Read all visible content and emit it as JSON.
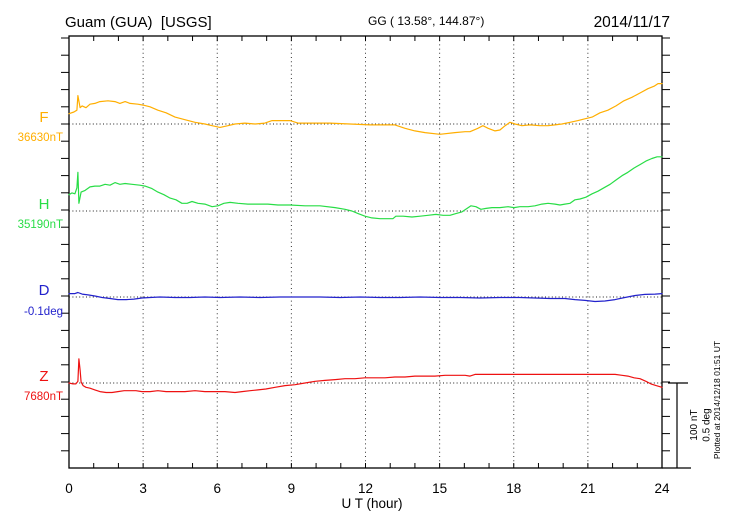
{
  "header": {
    "station_title": "Guam (GUA)  [USGS]",
    "coords": "GG ( 13.58°, 144.87°)",
    "date": "2014/11/17"
  },
  "x_axis": {
    "label": "U T (hour)",
    "tick_labels": [
      "0",
      "3",
      "6",
      "9",
      "12",
      "15",
      "18",
      "21",
      "24"
    ],
    "tick_hours": [
      0,
      3,
      6,
      9,
      12,
      15,
      18,
      21,
      24
    ],
    "minor_tick_every_hours": 1,
    "grid_every_hours": 3
  },
  "scale_bar": {
    "line1": "100 nT",
    "line2": "0.5 deg"
  },
  "footer_note": "Plotted at 2014/12/18 01:51 UT",
  "channels": [
    {
      "id": "F",
      "label": "F",
      "baseline_label": "36630nT",
      "baseline_value": 36630,
      "unit": "nT",
      "color": "#FFAE00"
    },
    {
      "id": "H",
      "label": "H",
      "baseline_label": "35190nT",
      "baseline_value": 35190,
      "unit": "nT",
      "color": "#28DD46"
    },
    {
      "id": "D",
      "label": "D",
      "baseline_label": "-0.1deg",
      "baseline_value": -0.1,
      "unit": "deg",
      "color": "#2222CC"
    },
    {
      "id": "Z",
      "label": "Z",
      "baseline_label": "7680nT",
      "baseline_value": 7680,
      "unit": "nT",
      "color": "#EE1111"
    }
  ],
  "chart_data": {
    "type": "line",
    "title": "Guam (GUA) [USGS] magnetogram",
    "date": "2014/11/17",
    "xlabel": "U T (hour)",
    "x_range_hours": [
      0,
      24
    ],
    "grid": "dotted baselines per channel + vertical dotted lines every 3 h",
    "legend_position": "left margin channel labels",
    "scale": {
      "nT_per_division": 100,
      "deg_per_division": 0.5
    },
    "series": [
      {
        "name": "F",
        "unit": "nT",
        "baseline": 36630,
        "note": "points are [hour UT, offset from baseline in nT]",
        "points": [
          [
            0,
            12
          ],
          [
            0.2,
            14
          ],
          [
            0.32,
            16
          ],
          [
            0.36,
            33
          ],
          [
            0.45,
            19
          ],
          [
            0.53,
            21
          ],
          [
            0.69,
            19
          ],
          [
            0.85,
            23
          ],
          [
            1.05,
            24
          ],
          [
            1.25,
            26
          ],
          [
            1.58,
            27
          ],
          [
            1.86,
            26
          ],
          [
            2.06,
            24
          ],
          [
            2.27,
            26
          ],
          [
            2.47,
            24
          ],
          [
            2.79,
            23
          ],
          [
            3,
            22
          ],
          [
            3.28,
            20
          ],
          [
            3.6,
            16
          ],
          [
            3.93,
            13
          ],
          [
            4.29,
            8
          ],
          [
            4.69,
            5
          ],
          [
            5.1,
            2
          ],
          [
            5.5,
            0
          ],
          [
            5.79,
            -2
          ],
          [
            6.11,
            -4
          ],
          [
            6.43,
            -2
          ],
          [
            6.72,
            0
          ],
          [
            7.12,
            1
          ],
          [
            7.53,
            0
          ],
          [
            7.93,
            1
          ],
          [
            8.22,
            4
          ],
          [
            8.54,
            4
          ],
          [
            8.94,
            4
          ],
          [
            9.27,
            1
          ],
          [
            9.75,
            1
          ],
          [
            10.56,
            1
          ],
          [
            11.37,
            0
          ],
          [
            12.18,
            -1
          ],
          [
            13.19,
            -1
          ],
          [
            13.6,
            -5
          ],
          [
            14,
            -8
          ],
          [
            14.41,
            -10
          ],
          [
            15.01,
            -12
          ],
          [
            15.62,
            -10
          ],
          [
            16.03,
            -9
          ],
          [
            16.23,
            -9
          ],
          [
            16.55,
            -5
          ],
          [
            16.75,
            -2
          ],
          [
            16.96,
            -5
          ],
          [
            17.24,
            -8
          ],
          [
            17.44,
            -7
          ],
          [
            17.65,
            -2
          ],
          [
            17.85,
            2
          ],
          [
            18.05,
            0
          ],
          [
            18.33,
            -2
          ],
          [
            18.66,
            -1
          ],
          [
            19.06,
            -2
          ],
          [
            19.39,
            -2
          ],
          [
            19.67,
            -1
          ],
          [
            19.95,
            0
          ],
          [
            20.28,
            2
          ],
          [
            20.6,
            4
          ],
          [
            20.88,
            6
          ],
          [
            21.17,
            8
          ],
          [
            21.49,
            13
          ],
          [
            21.81,
            16
          ],
          [
            22.14,
            21
          ],
          [
            22.46,
            27
          ],
          [
            22.78,
            31
          ],
          [
            23.11,
            36
          ],
          [
            23.43,
            41
          ],
          [
            23.68,
            44
          ],
          [
            23.84,
            47
          ],
          [
            24,
            47
          ]
        ]
      },
      {
        "name": "H",
        "unit": "nT",
        "baseline": 35190,
        "note": "points are [hour UT, offset from baseline in nT]",
        "points": [
          [
            0,
            19
          ],
          [
            0.12,
            21
          ],
          [
            0.24,
            20
          ],
          [
            0.32,
            27
          ],
          [
            0.36,
            45
          ],
          [
            0.4,
            9
          ],
          [
            0.49,
            22
          ],
          [
            0.65,
            24
          ],
          [
            0.85,
            28
          ],
          [
            1.05,
            29
          ],
          [
            1.25,
            29
          ],
          [
            1.46,
            31
          ],
          [
            1.66,
            30
          ],
          [
            1.86,
            33
          ],
          [
            2.06,
            31
          ],
          [
            2.27,
            32
          ],
          [
            2.55,
            31
          ],
          [
            2.87,
            30
          ],
          [
            3.08,
            29
          ],
          [
            3.36,
            26
          ],
          [
            3.6,
            22
          ],
          [
            3.84,
            19
          ],
          [
            4.09,
            15
          ],
          [
            4.33,
            13
          ],
          [
            4.57,
            9
          ],
          [
            4.78,
            9
          ],
          [
            4.98,
            11
          ],
          [
            5.22,
            9
          ],
          [
            5.5,
            8
          ],
          [
            5.79,
            5
          ],
          [
            6.03,
            6
          ],
          [
            6.27,
            9
          ],
          [
            6.52,
            10
          ],
          [
            6.84,
            9
          ],
          [
            7.24,
            8
          ],
          [
            7.65,
            8
          ],
          [
            8.05,
            8
          ],
          [
            8.46,
            7
          ],
          [
            8.94,
            7
          ],
          [
            9.55,
            6
          ],
          [
            10.16,
            6
          ],
          [
            10.77,
            4
          ],
          [
            11.17,
            2
          ],
          [
            11.45,
            0
          ],
          [
            11.7,
            -3
          ],
          [
            11.98,
            -6
          ],
          [
            12.26,
            -8
          ],
          [
            12.59,
            -9
          ],
          [
            12.91,
            -9
          ],
          [
            13.11,
            -9
          ],
          [
            13.23,
            -6
          ],
          [
            13.52,
            -6
          ],
          [
            13.88,
            -7
          ],
          [
            14.21,
            -6
          ],
          [
            14.53,
            -5
          ],
          [
            14.85,
            -4
          ],
          [
            15.14,
            -5
          ],
          [
            15.42,
            -5
          ],
          [
            15.66,
            -3
          ],
          [
            15.9,
            -1
          ],
          [
            16.11,
            3
          ],
          [
            16.27,
            6
          ],
          [
            16.47,
            5
          ],
          [
            16.67,
            2
          ],
          [
            16.88,
            3
          ],
          [
            17.12,
            4
          ],
          [
            17.44,
            4
          ],
          [
            17.77,
            5
          ],
          [
            18.01,
            4
          ],
          [
            18.25,
            5
          ],
          [
            18.58,
            5
          ],
          [
            18.86,
            6
          ],
          [
            19.14,
            8
          ],
          [
            19.39,
            9
          ],
          [
            19.67,
            8
          ],
          [
            19.87,
            7
          ],
          [
            20.07,
            8
          ],
          [
            20.28,
            9
          ],
          [
            20.48,
            13
          ],
          [
            20.68,
            14
          ],
          [
            20.92,
            16
          ],
          [
            21.17,
            20
          ],
          [
            21.41,
            23
          ],
          [
            21.65,
            27
          ],
          [
            21.9,
            31
          ],
          [
            22.14,
            36
          ],
          [
            22.38,
            41
          ],
          [
            22.62,
            45
          ],
          [
            22.87,
            50
          ],
          [
            23.11,
            54
          ],
          [
            23.35,
            58
          ],
          [
            23.59,
            61
          ],
          [
            23.8,
            63
          ],
          [
            24,
            63
          ]
        ]
      },
      {
        "name": "D",
        "unit": "deg",
        "baseline": -0.1,
        "note": "points are [hour UT, offset from baseline in deg]",
        "points": [
          [
            0,
            0.02
          ],
          [
            0.24,
            0.02
          ],
          [
            0.36,
            0.026
          ],
          [
            0.53,
            0.017
          ],
          [
            0.77,
            0.012
          ],
          [
            1.05,
            0.006
          ],
          [
            1.34,
            -0.003
          ],
          [
            1.66,
            -0.009
          ],
          [
            1.98,
            -0.015
          ],
          [
            2.31,
            -0.015
          ],
          [
            2.63,
            -0.012
          ],
          [
            2.95,
            -0.006
          ],
          [
            3.28,
            -0.003
          ],
          [
            3.68,
            0
          ],
          [
            4.29,
            -0.003
          ],
          [
            4.9,
            -0.003
          ],
          [
            5.5,
            0
          ],
          [
            6.11,
            -0.003
          ],
          [
            6.92,
            0
          ],
          [
            7.73,
            -0.003
          ],
          [
            8.54,
            0
          ],
          [
            9.35,
            0
          ],
          [
            10.16,
            0
          ],
          [
            10.97,
            -0.003
          ],
          [
            11.78,
            0
          ],
          [
            12.59,
            -0.003
          ],
          [
            13.4,
            -0.003
          ],
          [
            14.21,
            0
          ],
          [
            15.01,
            -0.003
          ],
          [
            15.82,
            -0.003
          ],
          [
            16.63,
            -0.006
          ],
          [
            17.44,
            -0.003
          ],
          [
            18.25,
            -0.003
          ],
          [
            18.86,
            -0.006
          ],
          [
            19.47,
            -0.009
          ],
          [
            20.07,
            -0.009
          ],
          [
            20.48,
            -0.015
          ],
          [
            20.88,
            -0.02
          ],
          [
            21.29,
            -0.026
          ],
          [
            21.69,
            -0.023
          ],
          [
            22.1,
            -0.015
          ],
          [
            22.5,
            -0.003
          ],
          [
            22.91,
            0.009
          ],
          [
            23.31,
            0.015
          ],
          [
            23.72,
            0.017
          ],
          [
            24,
            0.02
          ]
        ]
      },
      {
        "name": "Z",
        "unit": "nT",
        "baseline": 7680,
        "note": "points are [hour UT, offset from baseline in nT]",
        "points": [
          [
            0,
            0
          ],
          [
            0.16,
            -1
          ],
          [
            0.28,
            -1
          ],
          [
            0.36,
            2
          ],
          [
            0.4,
            28
          ],
          [
            0.45,
            15
          ],
          [
            0.49,
            1
          ],
          [
            0.57,
            -3
          ],
          [
            0.69,
            -5
          ],
          [
            0.85,
            -6
          ],
          [
            1.05,
            -8
          ],
          [
            1.25,
            -10
          ],
          [
            1.5,
            -11
          ],
          [
            1.74,
            -11
          ],
          [
            1.98,
            -10
          ],
          [
            2.23,
            -9
          ],
          [
            2.47,
            -9
          ],
          [
            2.71,
            -9
          ],
          [
            2.95,
            -10
          ],
          [
            3.28,
            -10
          ],
          [
            3.6,
            -9
          ],
          [
            3.93,
            -10
          ],
          [
            4.29,
            -10
          ],
          [
            4.69,
            -10
          ],
          [
            5.1,
            -9
          ],
          [
            5.5,
            -10
          ],
          [
            5.91,
            -10
          ],
          [
            6.31,
            -10
          ],
          [
            6.72,
            -11
          ],
          [
            7,
            -10
          ],
          [
            7.33,
            -9
          ],
          [
            7.65,
            -8
          ],
          [
            7.97,
            -7
          ],
          [
            8.34,
            -5
          ],
          [
            8.74,
            -3
          ],
          [
            9.15,
            -2
          ],
          [
            9.55,
            0
          ],
          [
            9.96,
            2
          ],
          [
            10.36,
            3
          ],
          [
            10.77,
            4
          ],
          [
            11.17,
            5
          ],
          [
            11.57,
            5
          ],
          [
            11.98,
            6
          ],
          [
            12.38,
            6
          ],
          [
            12.79,
            6
          ],
          [
            13.19,
            7
          ],
          [
            13.6,
            7
          ],
          [
            14,
            8
          ],
          [
            14.41,
            8
          ],
          [
            14.81,
            8
          ],
          [
            15.22,
            9
          ],
          [
            15.62,
            9
          ],
          [
            16.03,
            9
          ],
          [
            16.23,
            8
          ],
          [
            16.43,
            10
          ],
          [
            16.84,
            10
          ],
          [
            17.24,
            10
          ],
          [
            17.65,
            10
          ],
          [
            18.05,
            10
          ],
          [
            18.46,
            10
          ],
          [
            18.86,
            10
          ],
          [
            19.26,
            10
          ],
          [
            19.67,
            10
          ],
          [
            20.07,
            10
          ],
          [
            20.48,
            10
          ],
          [
            20.88,
            10
          ],
          [
            21.29,
            10
          ],
          [
            21.69,
            10
          ],
          [
            22.1,
            10
          ],
          [
            22.38,
            9
          ],
          [
            22.62,
            8
          ],
          [
            22.87,
            6
          ],
          [
            23.11,
            5
          ],
          [
            23.35,
            2
          ],
          [
            23.55,
            -1
          ],
          [
            23.76,
            -3
          ],
          [
            24,
            -5
          ]
        ]
      }
    ]
  }
}
